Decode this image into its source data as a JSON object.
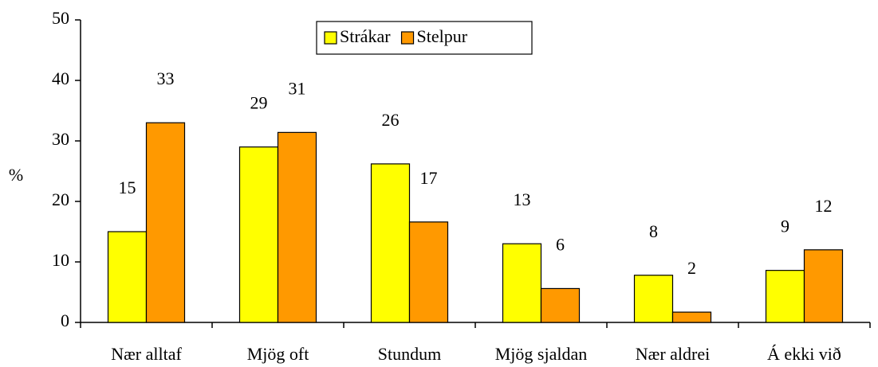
{
  "chart_data": {
    "type": "bar",
    "ylabel": "%",
    "categories": [
      "Nær alltaf",
      "Mjög oft",
      "Stundum",
      "Mjög sjaldan",
      "Nær aldrei",
      "Á ekki við"
    ],
    "series": [
      {
        "name": "Strákar",
        "color": "#ffff00",
        "values": [
          15,
          29,
          26.2,
          13,
          7.8,
          8.6
        ],
        "value_labels": [
          "15",
          "29",
          "26",
          "13",
          "8",
          "9"
        ]
      },
      {
        "name": "Stelpur",
        "color": "#ff9900",
        "values": [
          33,
          31.4,
          16.6,
          5.6,
          1.7,
          12
        ],
        "value_labels": [
          "33",
          "31",
          "17",
          "6",
          "2",
          "12"
        ]
      }
    ],
    "ylim": [
      0,
      50
    ],
    "yticks": [
      0,
      10,
      20,
      30,
      40,
      50
    ],
    "legend": "top"
  }
}
